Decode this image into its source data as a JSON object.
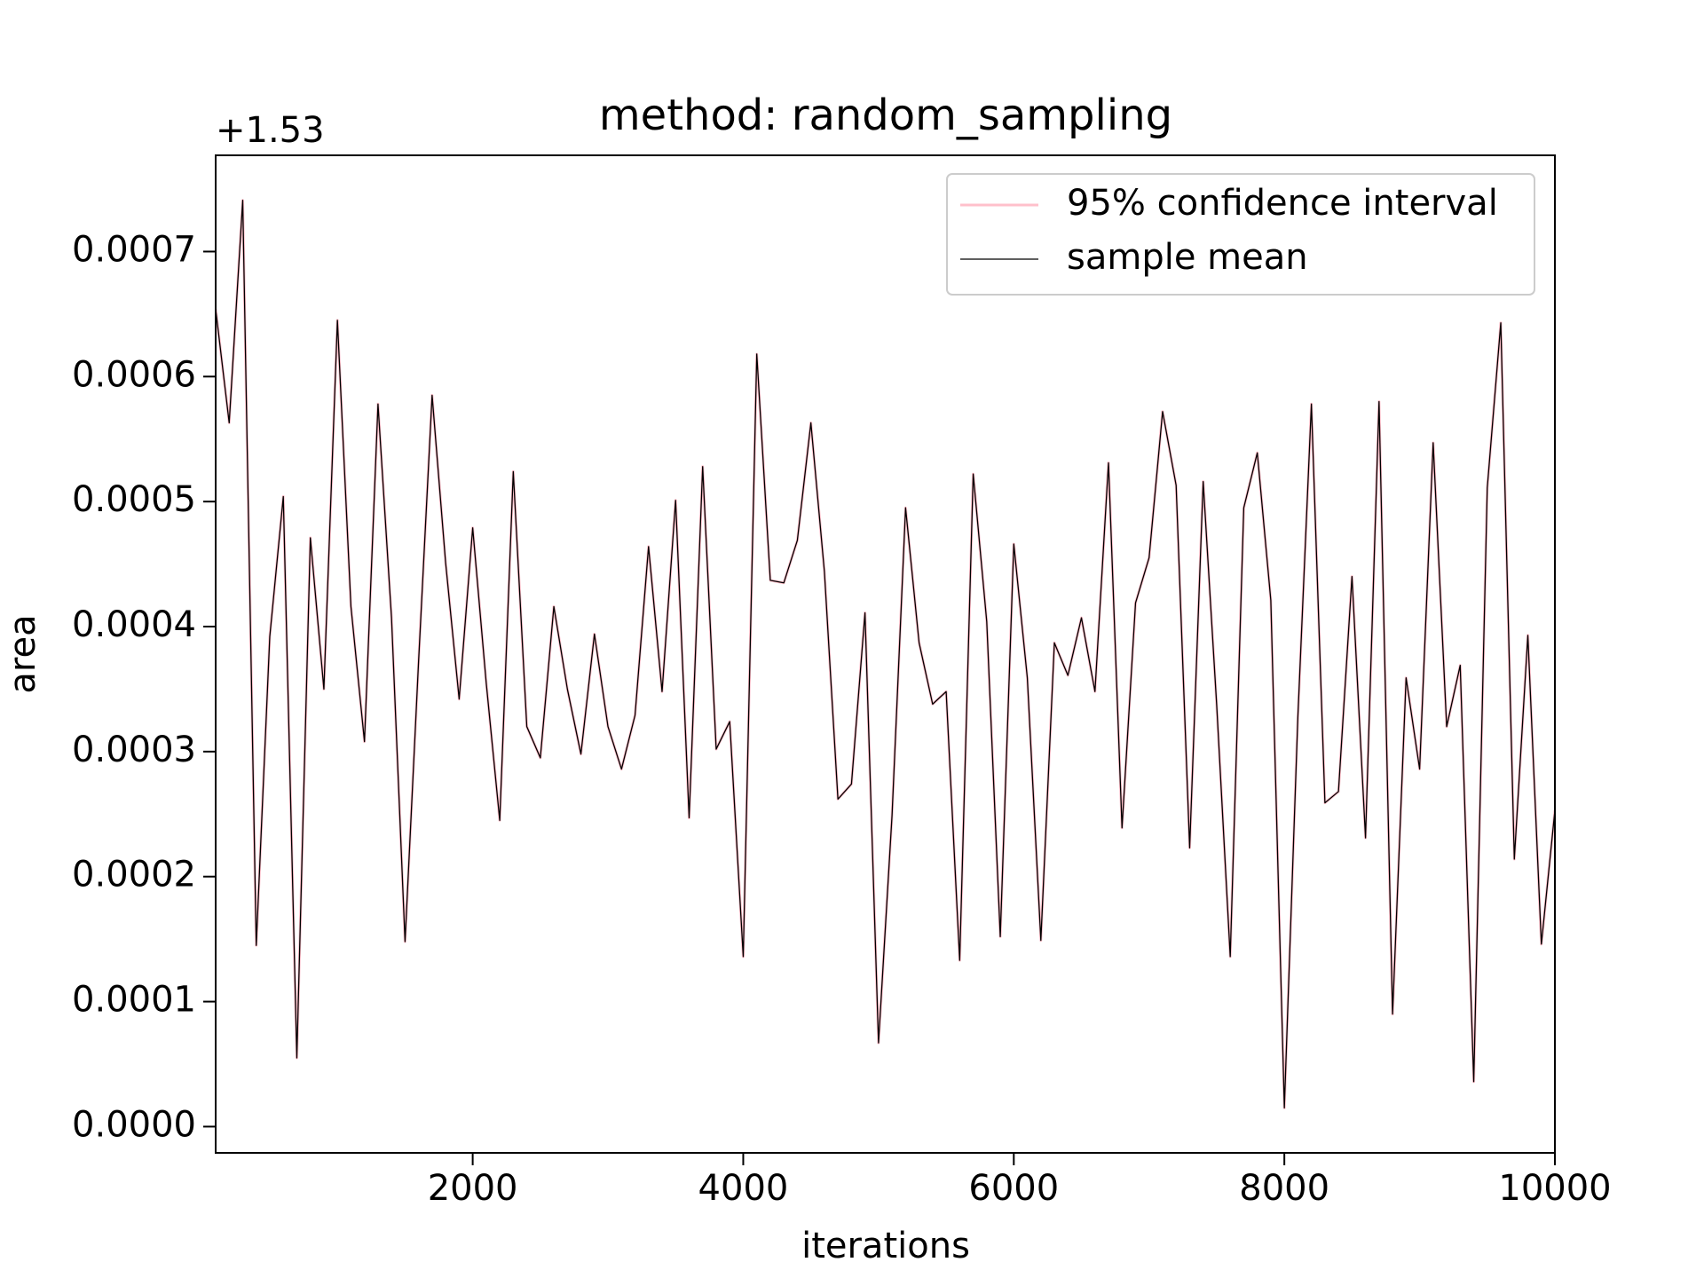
{
  "chart_data": {
    "type": "line",
    "title": "method: random_sampling",
    "x_label": "iterations",
    "y_label": "area",
    "y_offset_label": "+1.53",
    "x": [
      100,
      200,
      300,
      400,
      500,
      600,
      700,
      800,
      900,
      1000,
      1100,
      1200,
      1300,
      1400,
      1500,
      1600,
      1700,
      1800,
      1900,
      2000,
      2100,
      2200,
      2300,
      2400,
      2500,
      2600,
      2700,
      2800,
      2900,
      3000,
      3100,
      3200,
      3300,
      3400,
      3500,
      3600,
      3700,
      3800,
      3900,
      4000,
      4100,
      4200,
      4300,
      4400,
      4500,
      4600,
      4700,
      4800,
      4900,
      5000,
      5100,
      5200,
      5300,
      5400,
      5500,
      5600,
      5700,
      5800,
      5900,
      6000,
      6100,
      6200,
      6300,
      6400,
      6500,
      6600,
      6700,
      6800,
      6900,
      7000,
      7100,
      7200,
      7300,
      7400,
      7500,
      7600,
      7700,
      7800,
      7900,
      8000,
      8100,
      8200,
      8300,
      8400,
      8500,
      8600,
      8700,
      8800,
      8900,
      9000,
      9100,
      9200,
      9300,
      9400,
      9500,
      9600,
      9700,
      9800,
      9900,
      10000
    ],
    "series": [
      {
        "name": "95% confidence interval",
        "color": "#ffc0cb",
        "width": 3,
        "values": [
          0.000654,
          0.000563,
          0.000741,
          0.000145,
          0.000392,
          0.000504,
          5.5e-05,
          0.000471,
          0.00035,
          0.000645,
          0.000416,
          0.000308,
          0.000578,
          0.000407,
          0.000148,
          0.000372,
          0.000585,
          0.000451,
          0.000342,
          0.000479,
          0.000355,
          0.000245,
          0.000524,
          0.00032,
          0.000295,
          0.000416,
          0.00035,
          0.000298,
          0.000394,
          0.00032,
          0.000286,
          0.000329,
          0.000464,
          0.000348,
          0.000501,
          0.000247,
          0.000528,
          0.000302,
          0.000324,
          0.000136,
          0.000618,
          0.000437,
          0.000435,
          0.000469,
          0.000563,
          0.000444,
          0.000262,
          0.000274,
          0.000411,
          6.7e-05,
          0.000249,
          0.000495,
          0.000387,
          0.000338,
          0.000348,
          0.000133,
          0.000522,
          0.000404,
          0.000152,
          0.000466,
          0.000359,
          0.000149,
          0.000387,
          0.000361,
          0.000407,
          0.000348,
          0.000531,
          0.000239,
          0.000419,
          0.000455,
          0.000572,
          0.000513,
          0.000223,
          0.000516,
          0.000337,
          0.000136,
          0.000495,
          0.000539,
          0.000421,
          1.5e-05,
          0.000328,
          0.000578,
          0.000259,
          0.000268,
          0.00044,
          0.000231,
          0.00058,
          9e-05,
          0.000359,
          0.000286,
          0.000547,
          0.00032,
          0.000369,
          3.6e-05,
          0.000511,
          0.000643,
          0.000214,
          0.000393,
          0.000146,
          0.000253
        ]
      },
      {
        "name": "sample mean",
        "color": "#000000",
        "width": 1.3,
        "values": [
          0.000654,
          0.000563,
          0.000741,
          0.000145,
          0.000392,
          0.000504,
          5.5e-05,
          0.000471,
          0.00035,
          0.000645,
          0.000416,
          0.000308,
          0.000578,
          0.000407,
          0.000148,
          0.000372,
          0.000585,
          0.000451,
          0.000342,
          0.000479,
          0.000355,
          0.000245,
          0.000524,
          0.00032,
          0.000295,
          0.000416,
          0.00035,
          0.000298,
          0.000394,
          0.00032,
          0.000286,
          0.000329,
          0.000464,
          0.000348,
          0.000501,
          0.000247,
          0.000528,
          0.000302,
          0.000324,
          0.000136,
          0.000618,
          0.000437,
          0.000435,
          0.000469,
          0.000563,
          0.000444,
          0.000262,
          0.000274,
          0.000411,
          6.7e-05,
          0.000249,
          0.000495,
          0.000387,
          0.000338,
          0.000348,
          0.000133,
          0.000522,
          0.000404,
          0.000152,
          0.000466,
          0.000359,
          0.000149,
          0.000387,
          0.000361,
          0.000407,
          0.000348,
          0.000531,
          0.000239,
          0.000419,
          0.000455,
          0.000572,
          0.000513,
          0.000223,
          0.000516,
          0.000337,
          0.000136,
          0.000495,
          0.000539,
          0.000421,
          1.5e-05,
          0.000328,
          0.000578,
          0.000259,
          0.000268,
          0.00044,
          0.000231,
          0.00058,
          9e-05,
          0.000359,
          0.000286,
          0.000547,
          0.00032,
          0.000369,
          3.6e-05,
          0.000511,
          0.000643,
          0.000214,
          0.000393,
          0.000146,
          0.000253
        ]
      }
    ],
    "xlim": [
      100,
      10000
    ],
    "xticks": [
      2000,
      4000,
      6000,
      8000,
      10000
    ],
    "ylim": [
      -2.1e-05,
      0.000777
    ],
    "yticks": [
      {
        "value": 0,
        "label": "0.0000"
      },
      0.0001,
      0.0002,
      0.0003,
      0.0004,
      0.0005,
      0.0006,
      0.0007
    ],
    "grid": false,
    "legend": "upper right"
  }
}
